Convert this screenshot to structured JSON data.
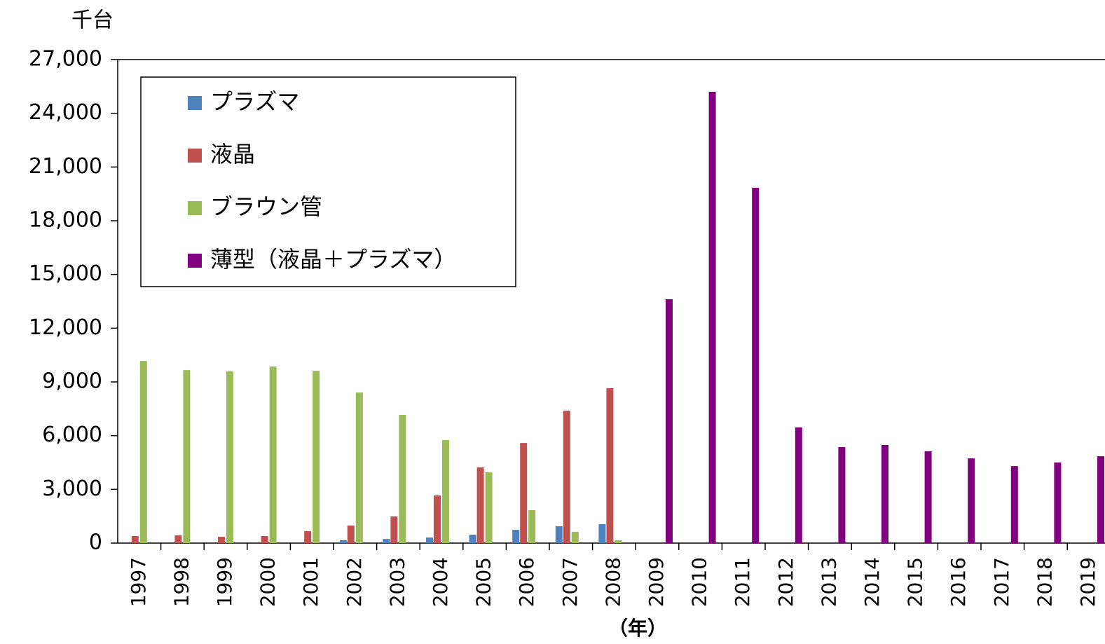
{
  "chart_data": {
    "type": "bar",
    "y_unit_label": "千台",
    "x_axis_label": "（年）",
    "categories": [
      "1997",
      "1998",
      "1999",
      "2000",
      "2001",
      "2002",
      "2003",
      "2004",
      "2005",
      "2006",
      "2007",
      "2008",
      "2009",
      "2010",
      "2011",
      "2012",
      "2013",
      "2014",
      "2015",
      "2016",
      "2017",
      "2018",
      "2019"
    ],
    "series": [
      {
        "name": "プラズマ",
        "color": "#4f81bd",
        "values": [
          null,
          null,
          null,
          null,
          null,
          160,
          230,
          310,
          470,
          740,
          940,
          1060,
          null,
          null,
          null,
          null,
          null,
          null,
          null,
          null,
          null,
          null,
          null
        ]
      },
      {
        "name": "液晶",
        "color": "#c0504d",
        "values": [
          390,
          430,
          350,
          390,
          670,
          980,
          1490,
          2660,
          4230,
          5590,
          7390,
          8650,
          null,
          null,
          null,
          null,
          null,
          null,
          null,
          null,
          null,
          null,
          null
        ]
      },
      {
        "name": "ブラウン管",
        "color": "#9bbb59",
        "values": [
          10170,
          9660,
          9590,
          9860,
          9620,
          8410,
          7160,
          5750,
          3950,
          1840,
          630,
          160,
          null,
          null,
          null,
          null,
          null,
          null,
          null,
          null,
          null,
          null,
          null
        ]
      },
      {
        "name": "薄型（液晶＋プラズマ）",
        "color": "#800080",
        "values": [
          null,
          null,
          null,
          null,
          null,
          null,
          null,
          null,
          null,
          null,
          null,
          null,
          13620,
          25200,
          19840,
          6460,
          5360,
          5480,
          5130,
          4730,
          4300,
          4500,
          4850
        ]
      }
    ],
    "ylim": [
      0,
      27000
    ],
    "yticks": [
      0,
      {
        "value": 3000,
        "label": "3,000"
      },
      {
        "value": 6000,
        "label": "6,000"
      },
      {
        "value": 9000,
        "label": "9,000"
      },
      {
        "value": 12000,
        "label": "12,000"
      },
      {
        "value": 15000,
        "label": "15,000"
      },
      {
        "value": 18000,
        "label": "18,000"
      },
      {
        "value": 21000,
        "label": "21,000"
      },
      {
        "value": 24000,
        "label": "24,000"
      },
      {
        "value": 27000,
        "label": "27,000"
      }
    ],
    "legend_position": "upper-left"
  }
}
